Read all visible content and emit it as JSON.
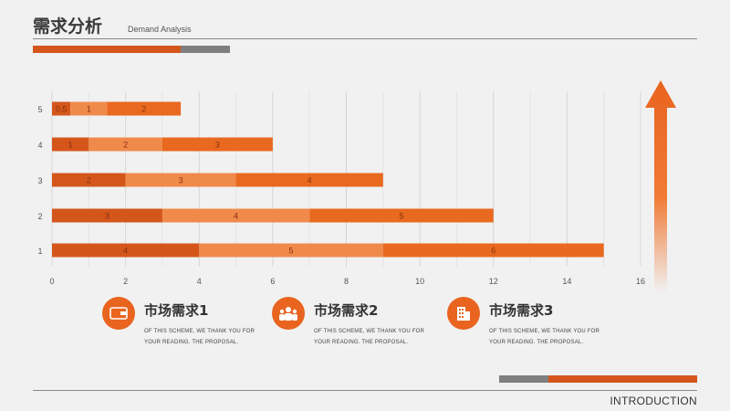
{
  "header": {
    "title": "需求分析",
    "subtitle": "Demand Analysis"
  },
  "colors": {
    "dark_orange": "#d4561b",
    "mid_orange": "#ec7b3c",
    "light_orange": "#f08a4b",
    "gray": "#7f7f7f",
    "background": "#f1f1f1"
  },
  "chart_data": {
    "type": "bar",
    "orientation": "horizontal",
    "stacked": true,
    "categories": [
      "1",
      "2",
      "3",
      "4",
      "5"
    ],
    "series": [
      {
        "values": [
          4,
          3,
          2,
          1,
          0.5
        ],
        "color": "#d4561b"
      },
      {
        "values": [
          5,
          4,
          3,
          2,
          1
        ],
        "color": "#f08a4b"
      },
      {
        "values": [
          6,
          5,
          4,
          3,
          2
        ],
        "color": "#e8691f"
      }
    ],
    "xlim": [
      0,
      16
    ],
    "xticks": [
      "0",
      "2",
      "4",
      "6",
      "8",
      "10",
      "12",
      "14",
      "16"
    ],
    "grid": true,
    "legend": "none"
  },
  "cards": [
    {
      "title": "市场需求1",
      "desc": "OF THIS SCHEME, WE THANK YOU FOR YOUR READING. THE PROPOSAL.",
      "icon": "wallet-icon"
    },
    {
      "title": "市场需求2",
      "desc": "OF THIS SCHEME, WE THANK YOU FOR YOUR READING. THE PROPOSAL.",
      "icon": "people-icon"
    },
    {
      "title": "市场需求3",
      "desc": "OF THIS SCHEME, WE THANK YOU FOR YOUR READING. THE PROPOSAL.",
      "icon": "building-icon"
    }
  ],
  "footer": {
    "label": "INTRODUCTION"
  }
}
